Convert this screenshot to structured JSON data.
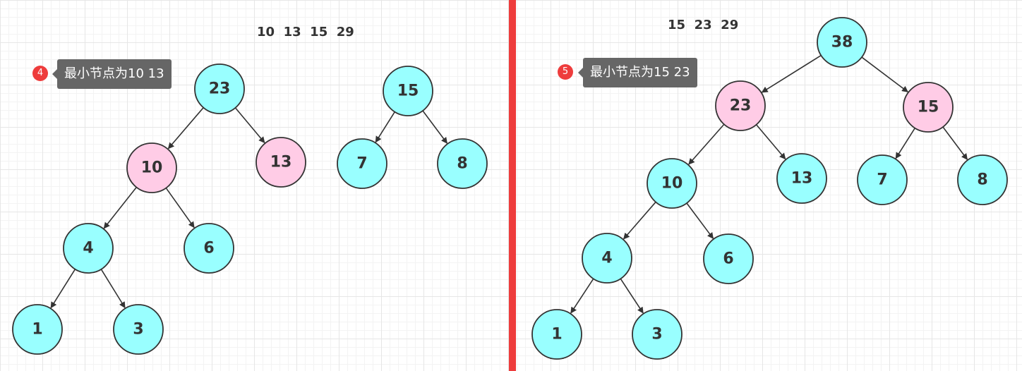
{
  "colors": {
    "node_default": "#99FFFF",
    "node_highlight": "#FFCCE6",
    "divider": "#EE3C3C",
    "badge": "#EE3C3C",
    "tooltip_bg": "#666666"
  },
  "panels": [
    {
      "sequence": "10  13  15  29",
      "step_badge": "4",
      "tooltip": "最小节点为10 13",
      "nodes": [
        {
          "id": "p1n23",
          "label": "23",
          "highlight": false
        },
        {
          "id": "p1n10",
          "label": "10",
          "highlight": true
        },
        {
          "id": "p1n13",
          "label": "13",
          "highlight": true
        },
        {
          "id": "p1n4",
          "label": "4",
          "highlight": false
        },
        {
          "id": "p1n6",
          "label": "6",
          "highlight": false
        },
        {
          "id": "p1n1",
          "label": "1",
          "highlight": false
        },
        {
          "id": "p1n3",
          "label": "3",
          "highlight": false
        },
        {
          "id": "p1n15",
          "label": "15",
          "highlight": false
        },
        {
          "id": "p1n7",
          "label": "7",
          "highlight": false
        },
        {
          "id": "p1n8",
          "label": "8",
          "highlight": false
        }
      ],
      "edges": [
        [
          "p1n23",
          "p1n10"
        ],
        [
          "p1n23",
          "p1n13"
        ],
        [
          "p1n10",
          "p1n4"
        ],
        [
          "p1n10",
          "p1n6"
        ],
        [
          "p1n4",
          "p1n1"
        ],
        [
          "p1n4",
          "p1n3"
        ],
        [
          "p1n15",
          "p1n7"
        ],
        [
          "p1n15",
          "p1n8"
        ]
      ]
    },
    {
      "sequence": "15  23  29",
      "step_badge": "5",
      "tooltip": "最小节点为15 23",
      "nodes": [
        {
          "id": "p2n38",
          "label": "38",
          "highlight": false
        },
        {
          "id": "p2n23",
          "label": "23",
          "highlight": true
        },
        {
          "id": "p2n15",
          "label": "15",
          "highlight": true
        },
        {
          "id": "p2n10",
          "label": "10",
          "highlight": false
        },
        {
          "id": "p2n13",
          "label": "13",
          "highlight": false
        },
        {
          "id": "p2n7",
          "label": "7",
          "highlight": false
        },
        {
          "id": "p2n8",
          "label": "8",
          "highlight": false
        },
        {
          "id": "p2n4",
          "label": "4",
          "highlight": false
        },
        {
          "id": "p2n6",
          "label": "6",
          "highlight": false
        },
        {
          "id": "p2n1",
          "label": "1",
          "highlight": false
        },
        {
          "id": "p2n3",
          "label": "3",
          "highlight": false
        }
      ],
      "edges": [
        [
          "p2n38",
          "p2n23"
        ],
        [
          "p2n38",
          "p2n15"
        ],
        [
          "p2n23",
          "p2n10"
        ],
        [
          "p2n23",
          "p2n13"
        ],
        [
          "p2n15",
          "p2n7"
        ],
        [
          "p2n15",
          "p2n8"
        ],
        [
          "p2n10",
          "p2n4"
        ],
        [
          "p2n10",
          "p2n6"
        ],
        [
          "p2n4",
          "p2n1"
        ],
        [
          "p2n4",
          "p2n3"
        ]
      ]
    }
  ]
}
